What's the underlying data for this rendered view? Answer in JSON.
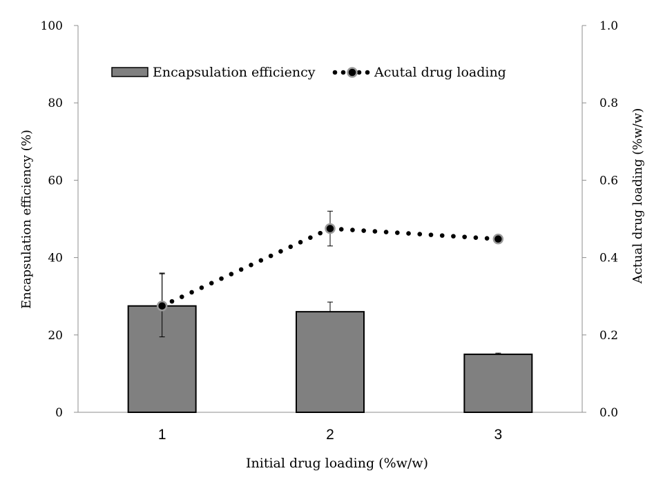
{
  "chart_data": {
    "type": "bar",
    "categories": [
      "1",
      "2",
      "3"
    ],
    "xlabel": "Initial drug loading (%w/w)",
    "ylabel": "Encapsulation efficiency (%)",
    "y2label": "Actual drug loading (%w/w)",
    "ylim": [
      0,
      100
    ],
    "y2lim": [
      0.0,
      1.0
    ],
    "yticks": [
      "0",
      "20",
      "40",
      "60",
      "80",
      "100"
    ],
    "y2ticks": [
      "0.0",
      "0.2",
      "0.4",
      "0.6",
      "0.8",
      "1.0"
    ],
    "legend_position": "top",
    "grid": false,
    "series": [
      {
        "name": "Encapsulation efficiency",
        "type": "bar",
        "axis": "left",
        "values": [
          27.5,
          26.0,
          15.0
        ],
        "error_plus": [
          8.3,
          2.5,
          0.3
        ],
        "error_minus": [
          0,
          0,
          0
        ],
        "color": "#808080"
      },
      {
        "name": "Acutal drug loading",
        "type": "line",
        "axis": "right",
        "style": "dotted",
        "values": [
          0.275,
          0.475,
          0.448
        ],
        "error_plus": [
          0.085,
          0.045,
          0
        ],
        "error_minus": [
          0.08,
          0.045,
          0
        ],
        "color": "#000000"
      }
    ]
  }
}
